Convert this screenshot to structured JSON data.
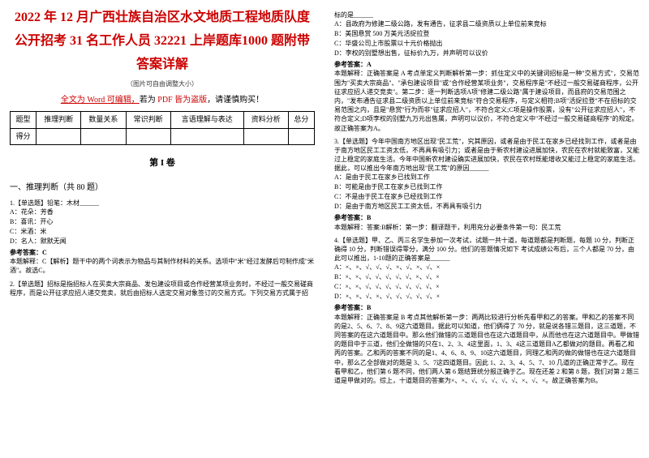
{
  "left": {
    "title": "2022 年 12 月广西壮族自治区水文地质工程地质队度公开招考 31 名工作人员 32221 上岸题库1000 题附带答案详解",
    "imgnote": "（图片可自由调整大小）",
    "wordprefix": "全文为 Word 可编辑，",
    "wordsuffix": "若为 ",
    "wordpdf": "PDF 皆为盗版",
    "wordend": "，请谨慎购买！",
    "headers": [
      "题型",
      "推理判断",
      "数量关系",
      "常识判断",
      "言语理解与表达",
      "资料分析",
      "总分"
    ],
    "row1": "得分",
    "section": "第 I 卷",
    "qtype": "一、推理判断（共 80 题）",
    "q1": {
      "stem": "1.【单选题】铅笔：木材______",
      "opts": [
        "A：花朵：芳香",
        "B：喜讯：开心",
        "C：米酒：米",
        "D：名人：默默无闻"
      ],
      "ans": "参考答案：C",
      "exp": "本题解释：C【解析】题干中的两个词表示为物品与其制作材料的关系。选项中\"米\"经过发酵后可制作成\"米酒\"。故选C。"
    },
    "q2stem": "2.【单选题】招标是指招标人在买卖大宗商品、发包建设项目或合作经营某项业务时，不经过一般交易磋商程序，而是公开征求应招人递交竞卖，就后由招标人选定交易对象签订的交易方式。下列交易方式属于招"
  },
  "right": {
    "q2cont": "标的是______",
    "q2opts": [
      "A：县政府为修建二级公路，发有通告，征求县二级资质以上单位前来竞标",
      "B：美国悬赏 500 万美元活捉拉登",
      "C：华盛公司上市股票以十元价格抛出",
      "D：李权的别墅想出售，征标价九万，并声明可以议价"
    ],
    "q2ans": "参考答案：A",
    "q2exp": "本题解释：正确答案是 A 考点单定义判断解析第一步：抓住定义中的关键词招标是一种\"交易方式\"，交易范围为\"买卖大宗商品\"、\"承包建设项目\"或\"合作经营某项业务\"，交易程序是\"不经过一般交易磋商程序，公开征求应招人递交竞卖\"。第二步：逐一判断选项A项\"修建二级公路\"属于建设项目，而县府的交易范围之内，\"发布通告征求县二级资质以上单位前来竞标\"符合交易程序，与定义相符;B项\"活捉拉登\"不在招标的交易范围之内，且是\"悬赏\"行为而非\"征求应招人\"，不符合定义;C项是操作股票，没有\"公开征求应招人\"，不符合定义;D项李权的别墅九万元出售属，声明可以议价，不符合定义中\"不经过一般交易磋商程序\"的规定。故正确答案为A。",
    "q3": {
      "stem": "3.【单选题】今年中国南方地区出现\"民工荒\"，究其原因，或者是由于民工在家乡已经找到工作，或者是由于南方地区民工工资太低，不再具有吸引力；或者是由于新农村建设进展加快，农民在农村就能致富，又能过上稳定的家庭生活。今年中国新农村建设确实进展加快，农民在农村既能增收又能过上稳定的家庭生活。据此，可以推出今年南方地出现\"民工荒\"的原因______",
      "opts": [
        "A：是由于民工在家乡已找到工作",
        "B：可能是由于民工在家乡已找到工作",
        "C：不是由于民工在家乡已经找到工作",
        "D：是由于南方地区民工工资太低，不再具有吸引力"
      ],
      "ans": "参考答案：B",
      "exp": "本题解释：答案:B解析：第一步：翻译题干，利用充分必要条件第一句：民工荒"
    },
    "q4": {
      "stem": "4.【单选题】甲、乙、丙三名学生参加一次考试，试题一共十道，每道题都是判断题，每题 10 分，判断正确得 10 分，判断错误得零分，满分 100 分。他们的答题情况如下 考试成绩公布后，三个人都是 70 分，由此可以推出，1-10题的正确答案是______",
      "opts": [
        "A：×、×、√、√、√、×、√、×、√、×",
        "B：×、×、√、√、√、√、√、×、√、×",
        "C：×、×、√、√、√、√、√、√、√、×",
        "D：×、×、√、×、√、√、√、√、√、×"
      ],
      "ans": "参考答案：B",
      "exp": "本题解释：正确答案是 B 考点其他解析第一步：两两比较进行分析先看甲和乙的答案。甲和乙的答案不同的是2、5、6、7、8、9这六道题目。据此可以知道，他们俩得了 70 分，就是说各错三题目，这三道题，不同答案的在这六道题目中。那么他们做错的三道题目也在这六道题目中，从而他也在这六道题目中。甲做错的题目中于三道，他们全做错的只在1、2、3、4这里面，1、3、4这三道题目A乙都做对的题目。再看乙和丙的答案。乙和丙的答案不同的是1、4、6、8、9、10这六道题目，同理乙和丙的做的做错也在这六道题目中，那么乙全部做对的题是 3、5、7这四道题目。因此 1、2、3、4、5、7、10 几道的正确正常于乙。现在看甲和乙，他们第 6 题不同，他们两人第 6 题结算统分报正确于乙。现在还差 2 和第 8 题，我们对第 2 题三道是甲做对的。综上，十道题目的答案为×、×、√、√、√、√、√、×、√、×。故正确答案为B。"
    }
  },
  "colors": {
    "red": "#cc0000",
    "text": "#000000",
    "bg": "#ffffff"
  }
}
